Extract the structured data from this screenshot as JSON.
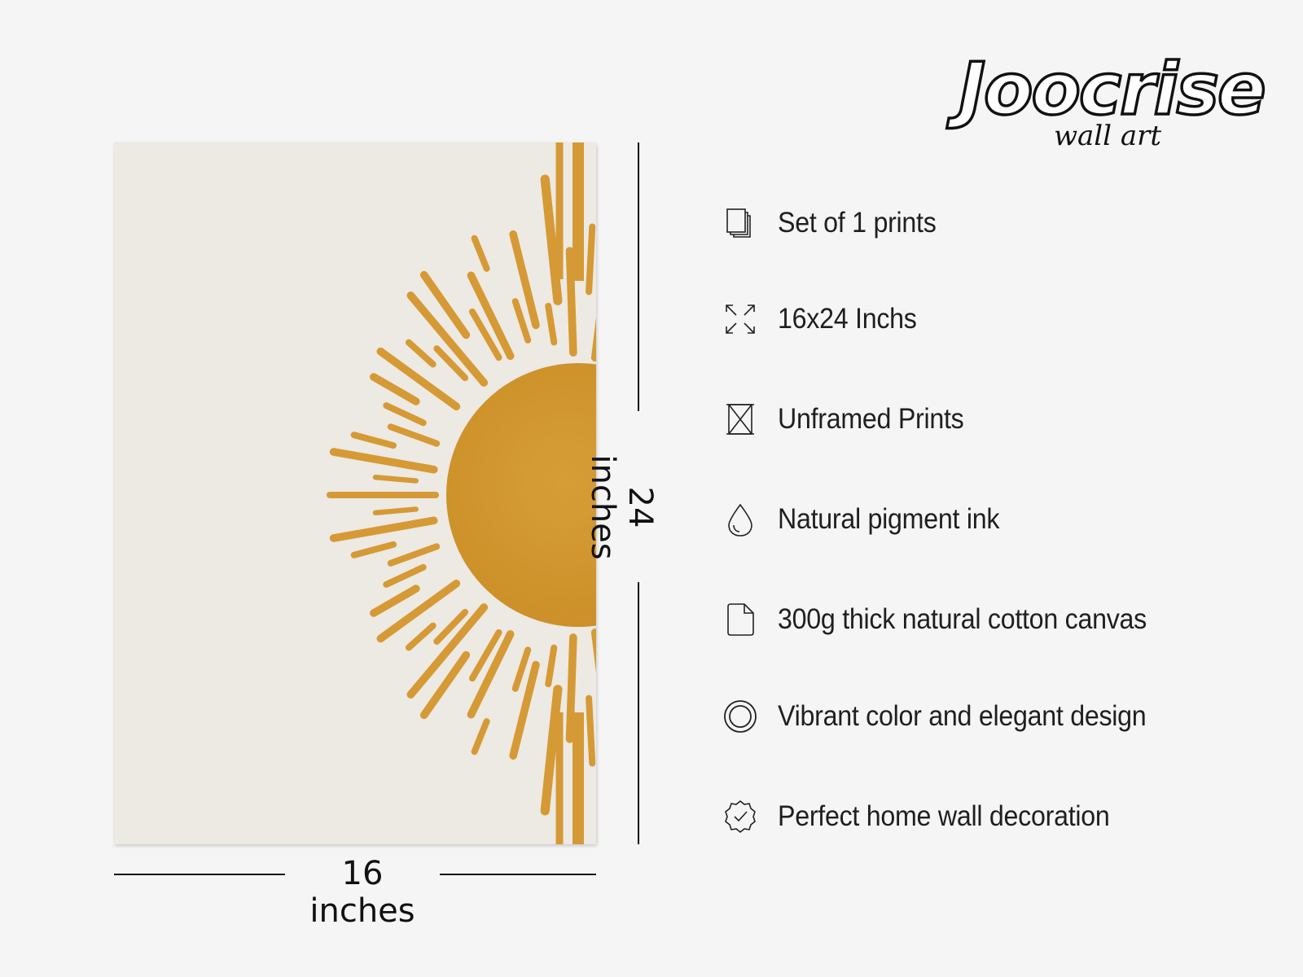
{
  "brand": {
    "name": "Joocrise",
    "tagline": "wall art"
  },
  "artwork": {
    "colors": {
      "background": "#ede9e3",
      "sun": "#d1972f",
      "rays": "#d59a35"
    }
  },
  "dimensions": {
    "width_label": "16 inches",
    "height_label": "24 inches"
  },
  "features": [
    {
      "icon": "stacked-pages-icon",
      "label": "Set of 1 prints"
    },
    {
      "icon": "expand-arrows-icon",
      "label": "16x24 Inchs"
    },
    {
      "icon": "unframed-box-icon",
      "label": "Unframed Prints"
    },
    {
      "icon": "ink-drop-icon",
      "label": "Natural pigment ink"
    },
    {
      "icon": "document-icon",
      "label": "300g thick natural cotton canvas"
    },
    {
      "icon": "concentric-circle-icon",
      "label": "Vibrant color and elegant design"
    },
    {
      "icon": "check-badge-icon",
      "label": "Perfect home wall decoration"
    }
  ]
}
